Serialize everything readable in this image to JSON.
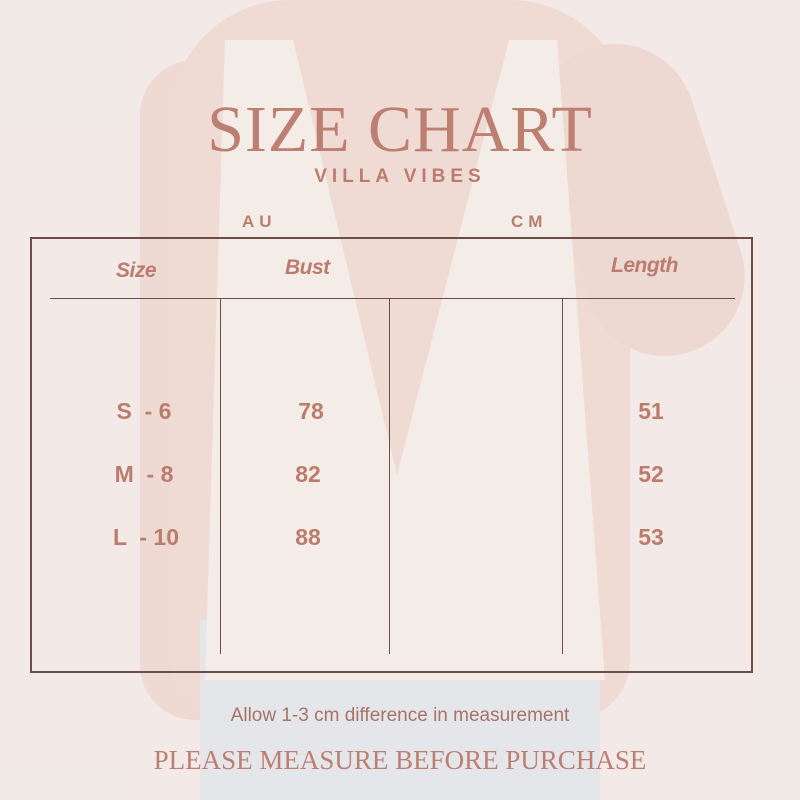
{
  "title": "SIZE CHART",
  "brand": "VILLA VIBES",
  "units": {
    "left": "AU",
    "right": "CM"
  },
  "headers": {
    "size": "Size",
    "bust": "Bust",
    "length": "Length"
  },
  "rows": [
    {
      "size": "S  - 6",
      "bust": "78",
      "length": "51"
    },
    {
      "size": "M  - 8",
      "bust": "82",
      "length": "52"
    },
    {
      "size": "L  - 10",
      "bust": "88",
      "length": "53"
    }
  ],
  "note": "Allow 1-3 cm difference in measurement",
  "cta": "PLEASE MEASURE BEFORE PURCHASE",
  "colors": {
    "text": "#bd7f71",
    "border": "#6d4d45"
  }
}
